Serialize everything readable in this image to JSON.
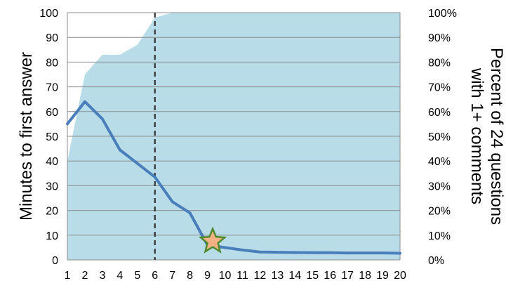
{
  "chart_data": {
    "type": "line",
    "title": "",
    "x": [
      1,
      2,
      3,
      4,
      5,
      6,
      7,
      8,
      9,
      10,
      11,
      12,
      13,
      14,
      15,
      16,
      17,
      18,
      19,
      20
    ],
    "xlabel": "",
    "ylabel": "Minutes to first answer",
    "ylabel_right": "Percent of 24 questions with 1+ comments",
    "ylabel_right_lines": [
      "Percent of 24 questions",
      "with 1+ comments"
    ],
    "ylim": [
      0,
      100
    ],
    "ylim_right": [
      0,
      100
    ],
    "yticks": [
      "0",
      "10",
      "20",
      "30",
      "40",
      "50",
      "60",
      "70",
      "80",
      "90",
      "100"
    ],
    "yticks_right": [
      "0%",
      "10%",
      "20%",
      "30%",
      "40%",
      "50%",
      "60%",
      "70%",
      "80%",
      "90%",
      "100%"
    ],
    "grid": true,
    "legend": "none",
    "series": [
      {
        "axis": "right",
        "kind": "area",
        "color": "#b8dde9",
        "values": [
          40,
          75,
          83,
          83,
          87,
          98,
          100,
          100,
          100,
          100,
          100,
          100,
          100,
          100,
          100,
          100,
          100,
          100,
          100,
          100
        ]
      },
      {
        "axis": "left",
        "kind": "line",
        "color": "#4a7ebb",
        "values": [
          55,
          64,
          57,
          44.5,
          39,
          33.5,
          23.5,
          19,
          6,
          5,
          4,
          3.2,
          3.1,
          3,
          2.9,
          2.9,
          2.8,
          2.8,
          2.8,
          2.7
        ]
      }
    ],
    "annotations": [
      {
        "type": "vline",
        "x": 6,
        "style": "dashed",
        "color": "#333333"
      },
      {
        "type": "star",
        "x": 9.3,
        "y": 7.5,
        "fill": "#f4b183",
        "stroke": "#4e8a2e"
      }
    ]
  }
}
